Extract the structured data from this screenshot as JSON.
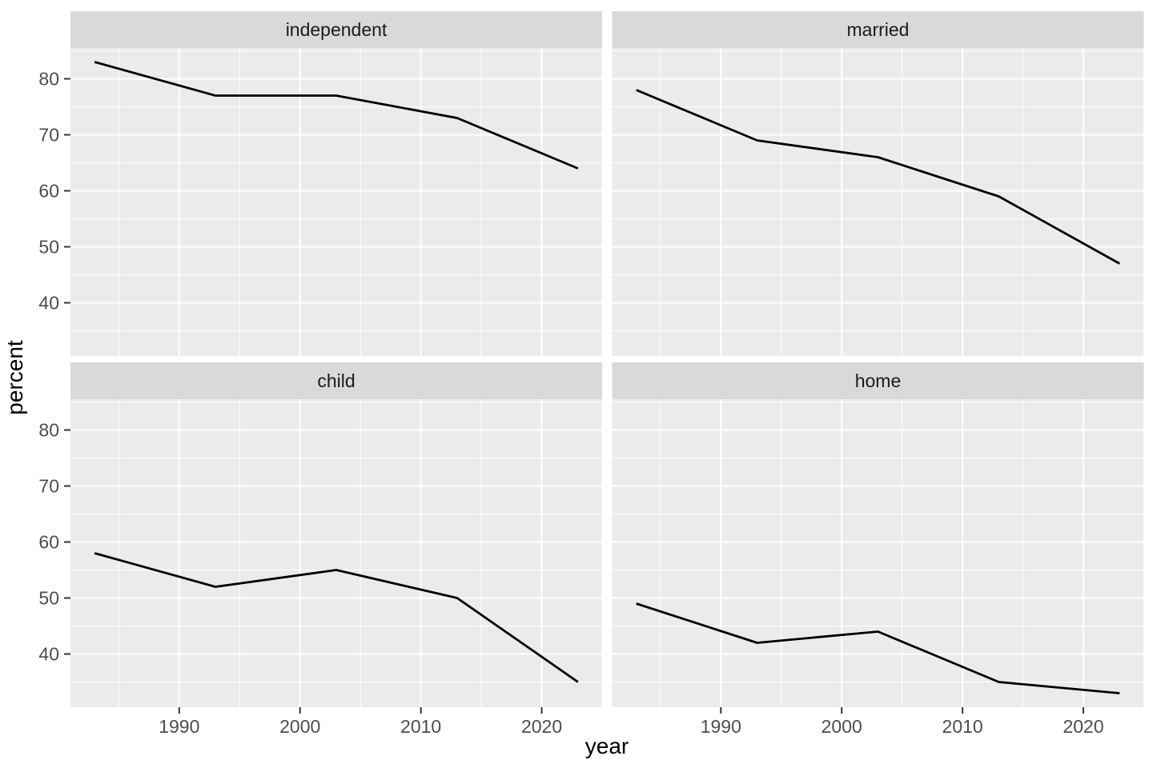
{
  "chart_data": {
    "type": "line",
    "title": "",
    "xlabel": "year",
    "ylabel": "percent",
    "x": [
      1983,
      1993,
      2003,
      2013,
      2023
    ],
    "facets": [
      {
        "label": "independent",
        "values": [
          83,
          77,
          77,
          73,
          64
        ]
      },
      {
        "label": "married",
        "values": [
          78,
          69,
          66,
          59,
          47
        ]
      },
      {
        "label": "child",
        "values": [
          58,
          52,
          55,
          50,
          35
        ]
      },
      {
        "label": "home",
        "values": [
          49,
          42,
          44,
          35,
          33
        ]
      }
    ],
    "x_ticks": [
      1990,
      2000,
      2010,
      2020
    ],
    "x_minor": [
      1985,
      1995,
      2005,
      2015,
      2025
    ],
    "y_ticks": [
      40,
      50,
      60,
      70,
      80
    ],
    "y_minor": [
      35,
      45,
      55,
      65,
      75,
      85
    ],
    "xlim": [
      1981,
      2025
    ],
    "ylim": [
      30.5,
      85.5
    ],
    "grid": true,
    "legend_position": "none",
    "facet_layout": "2x2",
    "colors": {
      "panel_bg": "#EBEBEB",
      "strip_bg": "#D9D9D9",
      "grid": "#FFFFFF",
      "line": "#000000",
      "tick_mark": "#333333",
      "axis_text": "#4D4D4D",
      "strip_text": "#1A1A1A"
    }
  }
}
